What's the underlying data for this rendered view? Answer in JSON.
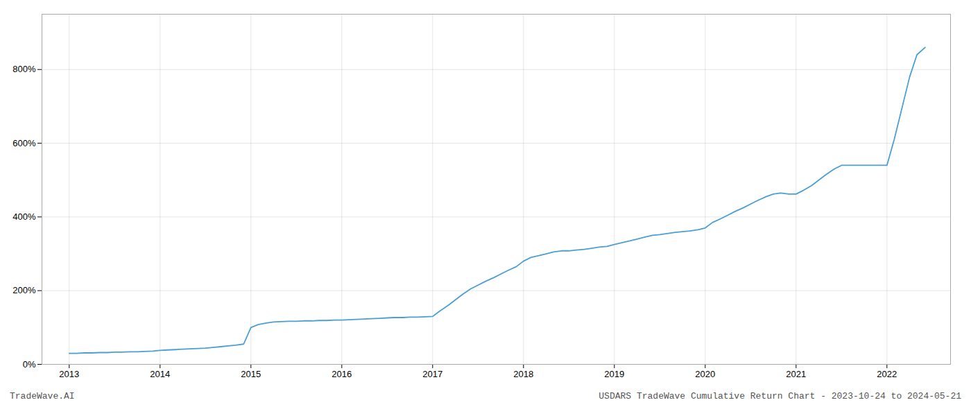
{
  "chart_data": {
    "type": "line",
    "title": "USDARS TradeWave Cumulative Return Chart - 2023-10-24 to 2024-05-21",
    "annotations": [
      "TradeWave.AI"
    ],
    "color": "#4a9fd4",
    "grid": true,
    "x": [
      2013.0,
      2013.08,
      2013.17,
      2013.25,
      2013.33,
      2013.42,
      2013.5,
      2013.58,
      2013.67,
      2013.75,
      2013.83,
      2013.92,
      2014.0,
      2014.08,
      2014.17,
      2014.25,
      2014.33,
      2014.42,
      2014.5,
      2014.58,
      2014.67,
      2014.75,
      2014.83,
      2014.92,
      2015.0,
      2015.08,
      2015.17,
      2015.25,
      2015.33,
      2015.42,
      2015.5,
      2015.58,
      2015.67,
      2015.75,
      2015.83,
      2015.92,
      2016.0,
      2016.08,
      2016.17,
      2016.25,
      2016.33,
      2016.42,
      2016.5,
      2016.58,
      2016.67,
      2016.75,
      2016.83,
      2016.92,
      2017.0,
      2017.08,
      2017.17,
      2017.25,
      2017.33,
      2017.42,
      2017.5,
      2017.58,
      2017.67,
      2017.75,
      2017.83,
      2017.92,
      2018.0,
      2018.08,
      2018.17,
      2018.25,
      2018.33,
      2018.42,
      2018.5,
      2018.58,
      2018.67,
      2018.75,
      2018.83,
      2018.92,
      2019.0,
      2019.08,
      2019.17,
      2019.25,
      2019.33,
      2019.42,
      2019.5,
      2019.58,
      2019.67,
      2019.75,
      2019.83,
      2019.92,
      2020.0,
      2020.08,
      2020.17,
      2020.25,
      2020.33,
      2020.42,
      2020.5,
      2020.58,
      2020.67,
      2020.75,
      2020.83,
      2020.92,
      2021.0,
      2021.08,
      2021.17,
      2021.25,
      2021.33,
      2021.42,
      2021.5,
      2021.58,
      2021.67,
      2021.75,
      2021.83,
      2021.92,
      2022.0,
      2022.08,
      2022.17,
      2022.25,
      2022.33,
      2022.42
    ],
    "values": [
      30,
      30,
      31,
      31,
      32,
      32,
      33,
      33,
      34,
      34,
      35,
      36,
      38,
      39,
      40,
      41,
      42,
      43,
      44,
      46,
      48,
      50,
      52,
      55,
      100,
      108,
      112,
      115,
      116,
      117,
      117,
      118,
      118,
      119,
      119,
      120,
      120,
      121,
      122,
      123,
      124,
      125,
      126,
      127,
      127,
      128,
      128,
      129,
      130,
      145,
      160,
      175,
      190,
      205,
      215,
      225,
      235,
      245,
      255,
      265,
      280,
      290,
      295,
      300,
      305,
      308,
      308,
      310,
      312,
      315,
      318,
      320,
      325,
      330,
      335,
      340,
      345,
      350,
      352,
      355,
      358,
      360,
      362,
      365,
      370,
      385,
      395,
      405,
      415,
      425,
      435,
      445,
      455,
      462,
      465,
      462,
      462,
      472,
      485,
      500,
      515,
      530,
      540,
      540,
      540,
      540,
      540,
      540,
      540,
      610,
      700,
      780,
      840,
      860
    ],
    "xlim": [
      2012.7,
      2022.7
    ],
    "xticks": [
      2013,
      2014,
      2015,
      2016,
      2017,
      2018,
      2019,
      2020,
      2021,
      2022
    ],
    "ylim": [
      0,
      950
    ],
    "yticks": [
      {
        "value": 0,
        "label": "0%"
      },
      {
        "value": 200,
        "label": "200%"
      },
      {
        "value": 400,
        "label": "400%"
      },
      {
        "value": 600,
        "label": "600%"
      },
      {
        "value": 800,
        "label": "800%"
      }
    ]
  }
}
